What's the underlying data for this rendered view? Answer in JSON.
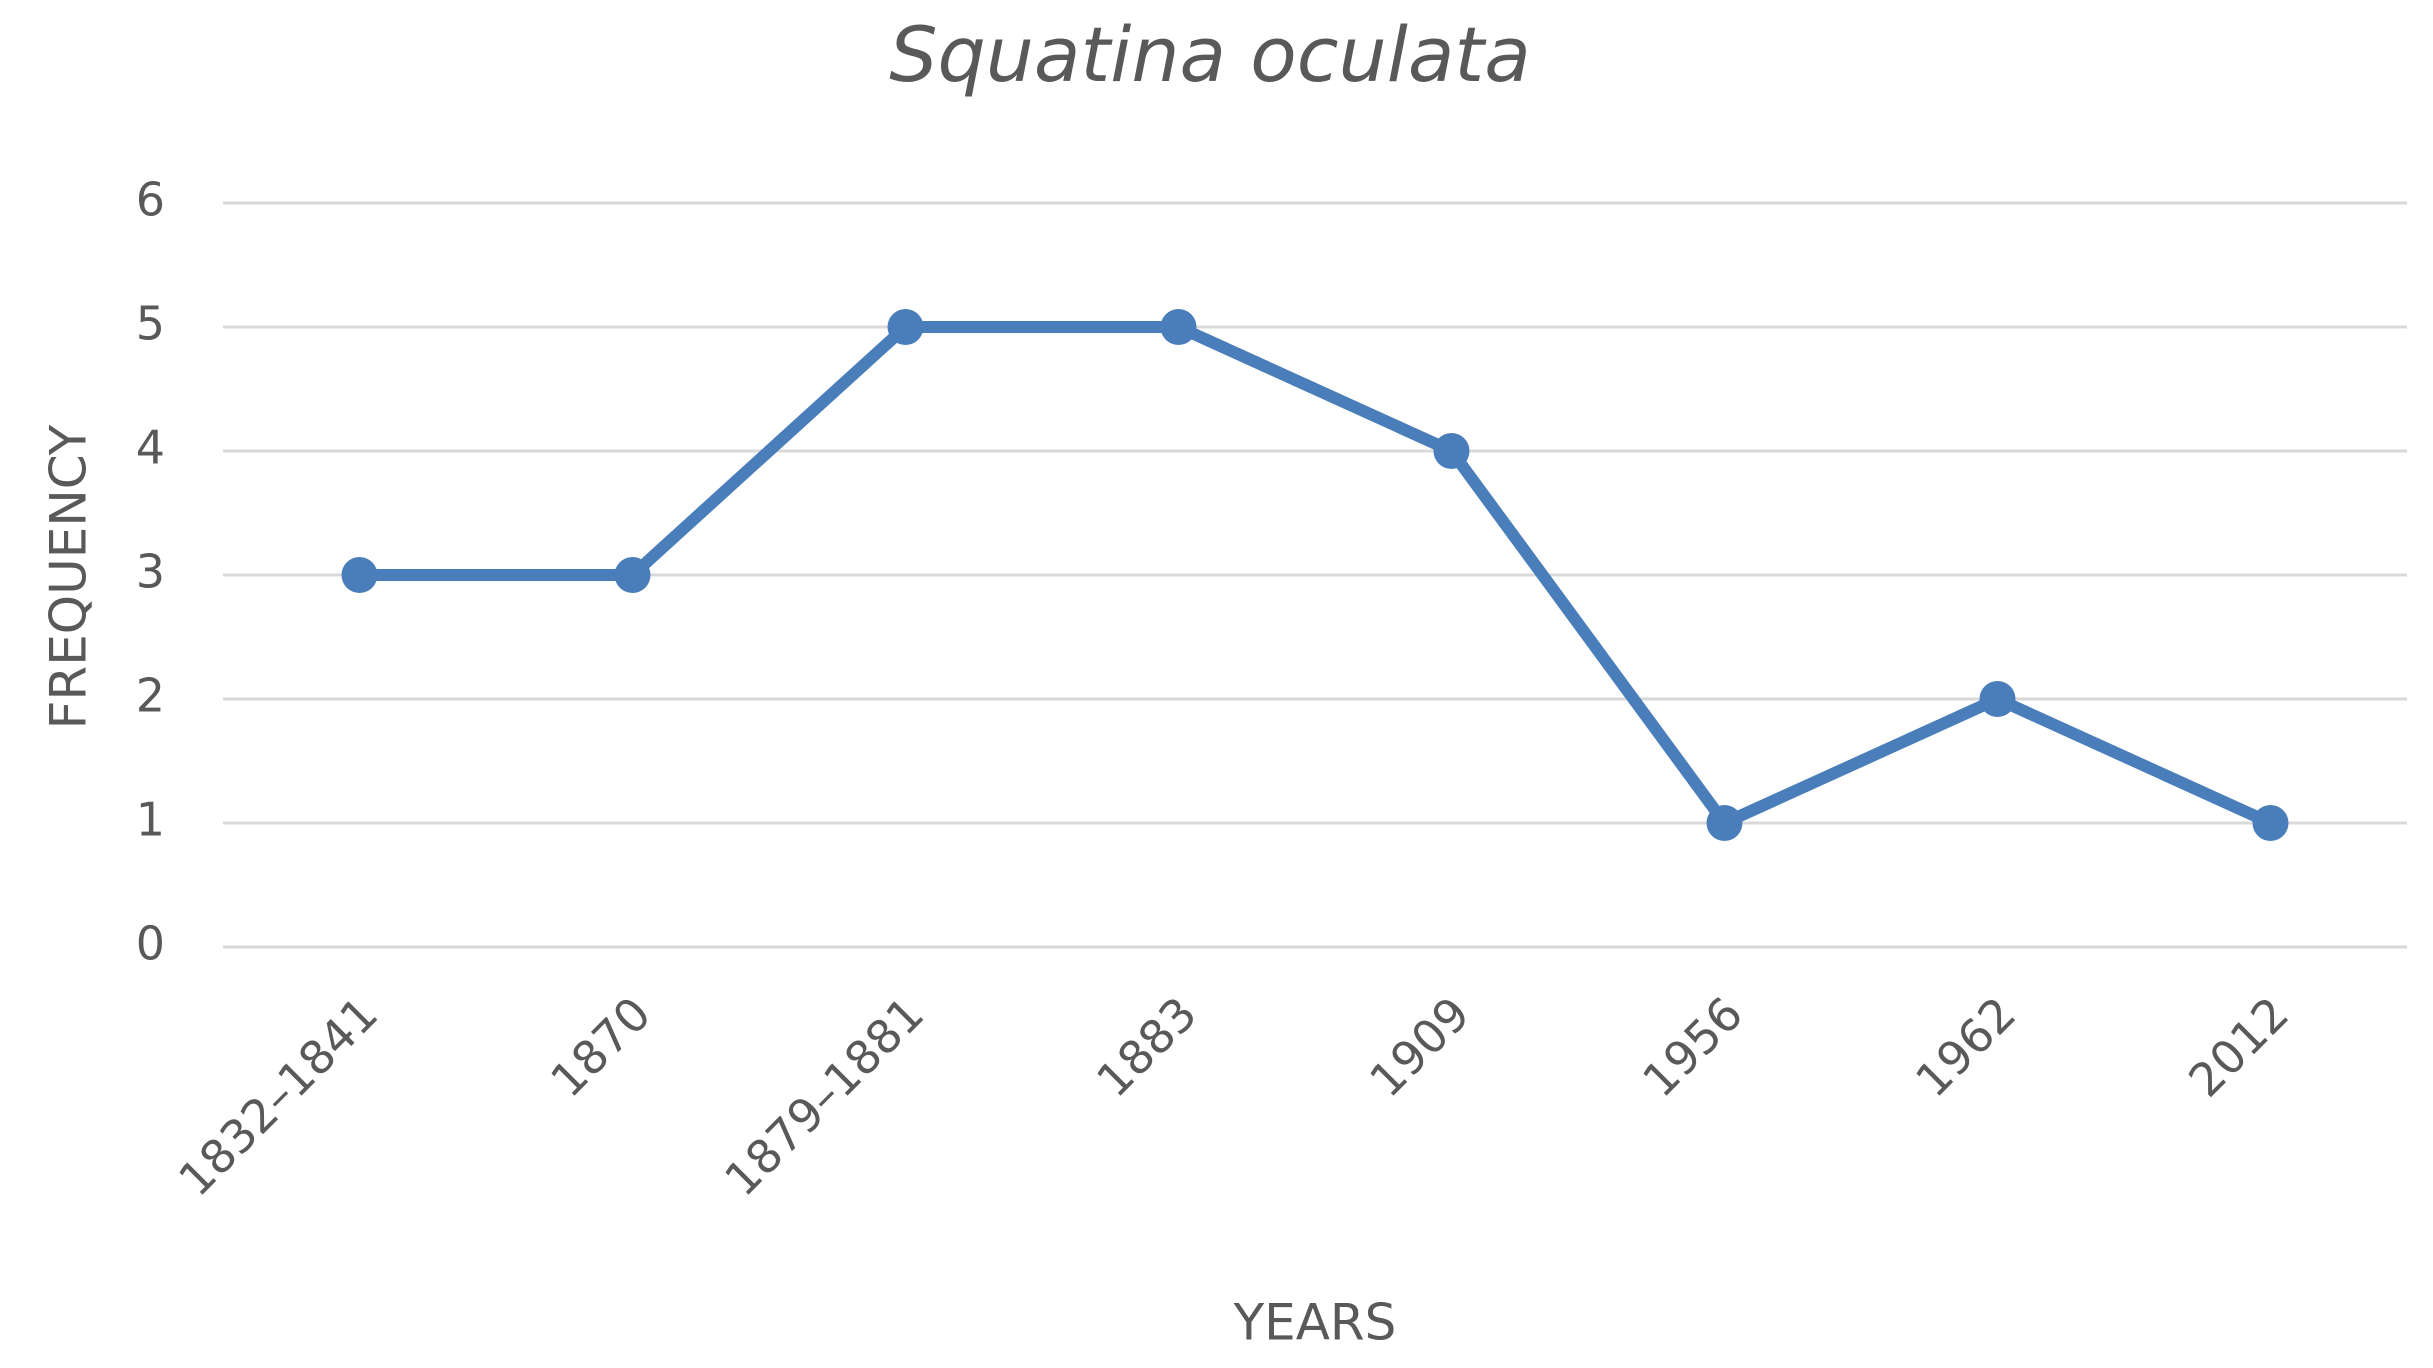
{
  "chart_data": {
    "type": "line",
    "title": "Squatina oculata",
    "x_label": "YEARS",
    "y_label": "FREQUENCY",
    "categories": [
      "1832–1841",
      "1870",
      "1879–1881",
      "1883",
      "1909",
      "1956",
      "1962",
      "2012"
    ],
    "values": [
      3,
      3,
      5,
      5,
      4,
      1,
      2,
      1
    ],
    "color": "#4a7ebb",
    "ylim": [
      0,
      6
    ],
    "yticks": [
      0,
      1,
      2,
      3,
      4,
      5,
      6
    ],
    "grid": true
  }
}
